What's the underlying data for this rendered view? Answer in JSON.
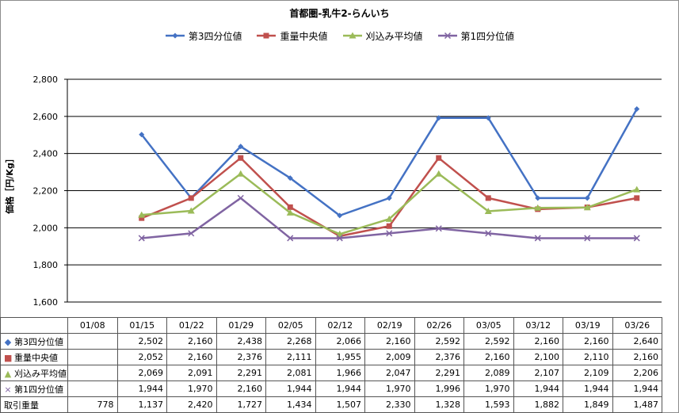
{
  "chart_data": {
    "type": "line",
    "title": "首都圏-乳牛2-らんいち",
    "ylabel": "価格［円/Kg］",
    "ylim": [
      1600,
      2800
    ],
    "yticks": [
      1600,
      1800,
      2000,
      2200,
      2400,
      2600,
      2800
    ],
    "ytick_labels": [
      "1,600",
      "1,800",
      "2,000",
      "2,200",
      "2,400",
      "2,600",
      "2,800"
    ],
    "grid": true,
    "legend_position": "top",
    "categories": [
      "01/08",
      "01/15",
      "01/22",
      "01/29",
      "02/05",
      "02/12",
      "02/19",
      "02/26",
      "03/05",
      "03/12",
      "03/19",
      "03/26"
    ],
    "series": [
      {
        "name": "第3四分位値",
        "color": "#4472c4",
        "marker": "diamond",
        "values": [
          null,
          2502,
          2160,
          2438,
          2268,
          2066,
          2160,
          2592,
          2592,
          2160,
          2160,
          2640
        ],
        "labels": [
          "",
          "2,502",
          "2,160",
          "2,438",
          "2,268",
          "2,066",
          "2,160",
          "2,592",
          "2,592",
          "2,160",
          "2,160",
          "2,640"
        ]
      },
      {
        "name": "重量中央値",
        "color": "#c0504d",
        "marker": "square",
        "values": [
          null,
          2052,
          2160,
          2376,
          2111,
          1955,
          2009,
          2376,
          2160,
          2100,
          2110,
          2160
        ],
        "labels": [
          "",
          "2,052",
          "2,160",
          "2,376",
          "2,111",
          "1,955",
          "2,009",
          "2,376",
          "2,160",
          "2,100",
          "2,110",
          "2,160"
        ]
      },
      {
        "name": "刈込み平均値",
        "color": "#9bbb59",
        "marker": "triangle",
        "values": [
          null,
          2069,
          2091,
          2291,
          2081,
          1966,
          2047,
          2291,
          2089,
          2107,
          2109,
          2206
        ],
        "labels": [
          "",
          "2,069",
          "2,091",
          "2,291",
          "2,081",
          "1,966",
          "2,047",
          "2,291",
          "2,089",
          "2,107",
          "2,109",
          "2,206"
        ]
      },
      {
        "name": "第1四分位値",
        "color": "#8064a2",
        "marker": "x",
        "values": [
          null,
          1944,
          1970,
          2160,
          1944,
          1944,
          1970,
          1996,
          1970,
          1944,
          1944,
          1944
        ],
        "labels": [
          "",
          "1,944",
          "1,970",
          "2,160",
          "1,944",
          "1,944",
          "1,970",
          "1,996",
          "1,970",
          "1,944",
          "1,944",
          "1,944"
        ]
      }
    ],
    "extra_row": {
      "name": "取引重量",
      "labels": [
        "778",
        "1,137",
        "2,420",
        "1,727",
        "1,434",
        "1,507",
        "2,330",
        "1,328",
        "1,593",
        "1,882",
        "1,849",
        "1,487"
      ]
    }
  }
}
